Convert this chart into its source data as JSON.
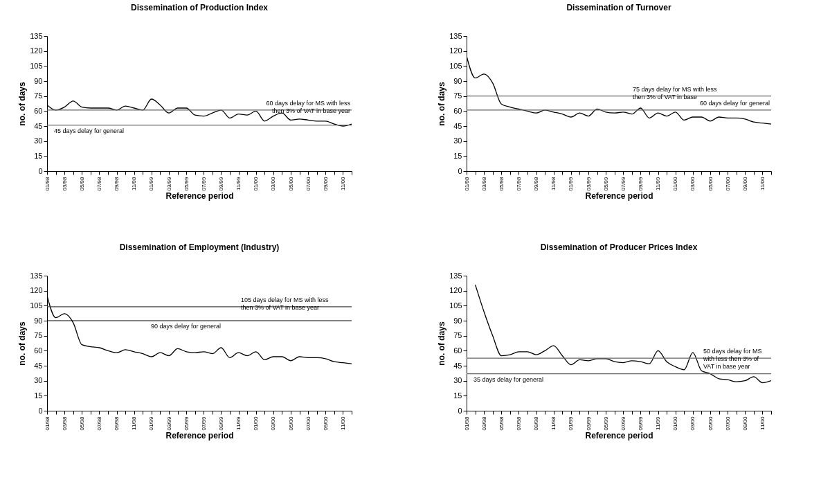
{
  "chart_data": [
    {
      "type": "line",
      "title": "Dissemination of Production Index",
      "xlabel": "Reference period",
      "ylabel": "no. of days",
      "categories": [
        "01/98",
        null,
        "03/98",
        null,
        "05/98",
        null,
        "07/98",
        null,
        "09/98",
        null,
        "11/98",
        null,
        "01/99",
        null,
        "03/99",
        null,
        "05/99",
        null,
        "07/99",
        null,
        "09/99",
        null,
        "11/99",
        null,
        "01/00",
        null,
        "03/00",
        null,
        "05/00",
        null,
        "07/00",
        null,
        "09/00",
        null,
        "11/00",
        null
      ],
      "series": [
        {
          "color": "#000000",
          "values": [
            66,
            61,
            64,
            70,
            64,
            63,
            63,
            63,
            61,
            65,
            63,
            61,
            72,
            66,
            58,
            63,
            63,
            56,
            55,
            58,
            61,
            53,
            57,
            56,
            60,
            50,
            55,
            58,
            51,
            52,
            51,
            50,
            50,
            47,
            45,
            47
          ]
        }
      ],
      "ylim": [
        0,
        135
      ],
      "yticks": [
        0,
        15,
        30,
        45,
        60,
        75,
        90,
        105,
        120,
        135
      ],
      "grid": false,
      "ref_lines": [
        {
          "axis": "y",
          "value": 61,
          "label": "60 days delay for MS with less then 3% of VAT in base year",
          "color": "#666666"
        },
        {
          "axis": "y",
          "value": 46,
          "label": "45 days delay for general",
          "color": "#666666"
        }
      ]
    },
    {
      "type": "line",
      "title": "Dissemination of Turnover",
      "xlabel": "Reference period",
      "ylabel": "no. of days",
      "categories": [
        "01/98",
        null,
        "03/98",
        null,
        "05/98",
        null,
        "07/98",
        null,
        "09/98",
        null,
        "11/98",
        null,
        "01/99",
        null,
        "03/99",
        null,
        "05/99",
        null,
        "07/99",
        null,
        "09/99",
        null,
        "11/99",
        null,
        "01/00",
        null,
        "03/00",
        null,
        "05/00",
        null,
        "07/00",
        null,
        "09/00",
        null,
        "11/00",
        null
      ],
      "series": [
        {
          "color": "#000000",
          "values": [
            115,
            93,
            97,
            88,
            67,
            64,
            62,
            60,
            58,
            61,
            59,
            57,
            54,
            58,
            55,
            62,
            59,
            58,
            59,
            57,
            63,
            53,
            58,
            55,
            59,
            51,
            54,
            54,
            50,
            54,
            53,
            53,
            52,
            49,
            48,
            47
          ]
        }
      ],
      "ylim": [
        0,
        135
      ],
      "yticks": [
        0,
        15,
        30,
        45,
        60,
        75,
        90,
        105,
        120,
        135
      ],
      "grid": false,
      "ref_lines": [
        {
          "axis": "y",
          "value": 75,
          "label": "75 days delay for MS with less then 3% of VAT in base",
          "color": "#666666"
        },
        {
          "axis": "y",
          "value": 61,
          "label": "60 days delay for general",
          "color": "#666666"
        }
      ]
    },
    {
      "type": "line",
      "title": "Dissemination of Employment (Industry)",
      "xlabel": "Reference period",
      "ylabel": "no. of days",
      "categories": [
        "01/98",
        null,
        "03/98",
        null,
        "05/98",
        null,
        "07/98",
        null,
        "09/98",
        null,
        "11/98",
        null,
        "01/99",
        null,
        "03/99",
        null,
        "05/99",
        null,
        "07/99",
        null,
        "09/99",
        null,
        "11/99",
        null,
        "01/00",
        null,
        "03/00",
        null,
        "05/00",
        null,
        "07/00",
        null,
        "09/00",
        null,
        "11/00",
        null
      ],
      "series": [
        {
          "color": "#000000",
          "values": [
            115,
            93,
            97,
            88,
            66,
            64,
            63,
            60,
            58,
            61,
            59,
            57,
            54,
            58,
            55,
            62,
            59,
            58,
            59,
            57,
            63,
            53,
            58,
            55,
            59,
            51,
            54,
            54,
            50,
            54,
            53,
            53,
            52,
            49,
            48,
            47
          ]
        }
      ],
      "ylim": [
        0,
        135
      ],
      "yticks": [
        0,
        15,
        30,
        45,
        60,
        75,
        90,
        105,
        120,
        135
      ],
      "grid": false,
      "ref_lines": [
        {
          "axis": "y",
          "value": 104,
          "label": "105 days delay for MS with less then 3% of VAT in base year",
          "color": "#444444"
        },
        {
          "axis": "y",
          "value": 90,
          "label": "90 days delay for general",
          "color": "#000000"
        }
      ]
    },
    {
      "type": "line",
      "title": "Dissemination of Producer Prices Index",
      "xlabel": "Reference period",
      "ylabel": "no. of days",
      "categories": [
        "01/98",
        null,
        "03/98",
        null,
        "05/98",
        null,
        "07/98",
        null,
        "09/98",
        null,
        "11/98",
        null,
        "01/99",
        null,
        "03/99",
        null,
        "05/99",
        null,
        "07/99",
        null,
        "09/99",
        null,
        "11/99",
        null,
        "01/00",
        null,
        "03/00",
        null,
        "05/00",
        null,
        "07/00",
        null,
        "09/00",
        null,
        "11/00",
        null
      ],
      "series": [
        {
          "color": "#000000",
          "values": [
            null,
            126,
            99,
            75,
            55,
            56,
            59,
            59,
            56,
            60,
            65,
            55,
            46,
            51,
            50,
            52,
            52,
            49,
            48,
            50,
            49,
            47,
            60,
            49,
            44,
            41,
            58,
            40,
            37,
            32,
            31,
            29,
            30,
            34,
            28,
            30
          ]
        }
      ],
      "ylim": [
        0,
        135
      ],
      "yticks": [
        0,
        15,
        30,
        45,
        60,
        75,
        90,
        105,
        120,
        135
      ],
      "grid": false,
      "ref_lines": [
        {
          "axis": "y",
          "value": 52.5,
          "label": "50 days delay for MS with less then 3% of VAT in base year",
          "color": "#666666"
        },
        {
          "axis": "y",
          "value": 37,
          "label": "35 days delay for general",
          "color": "#666666"
        }
      ]
    }
  ]
}
